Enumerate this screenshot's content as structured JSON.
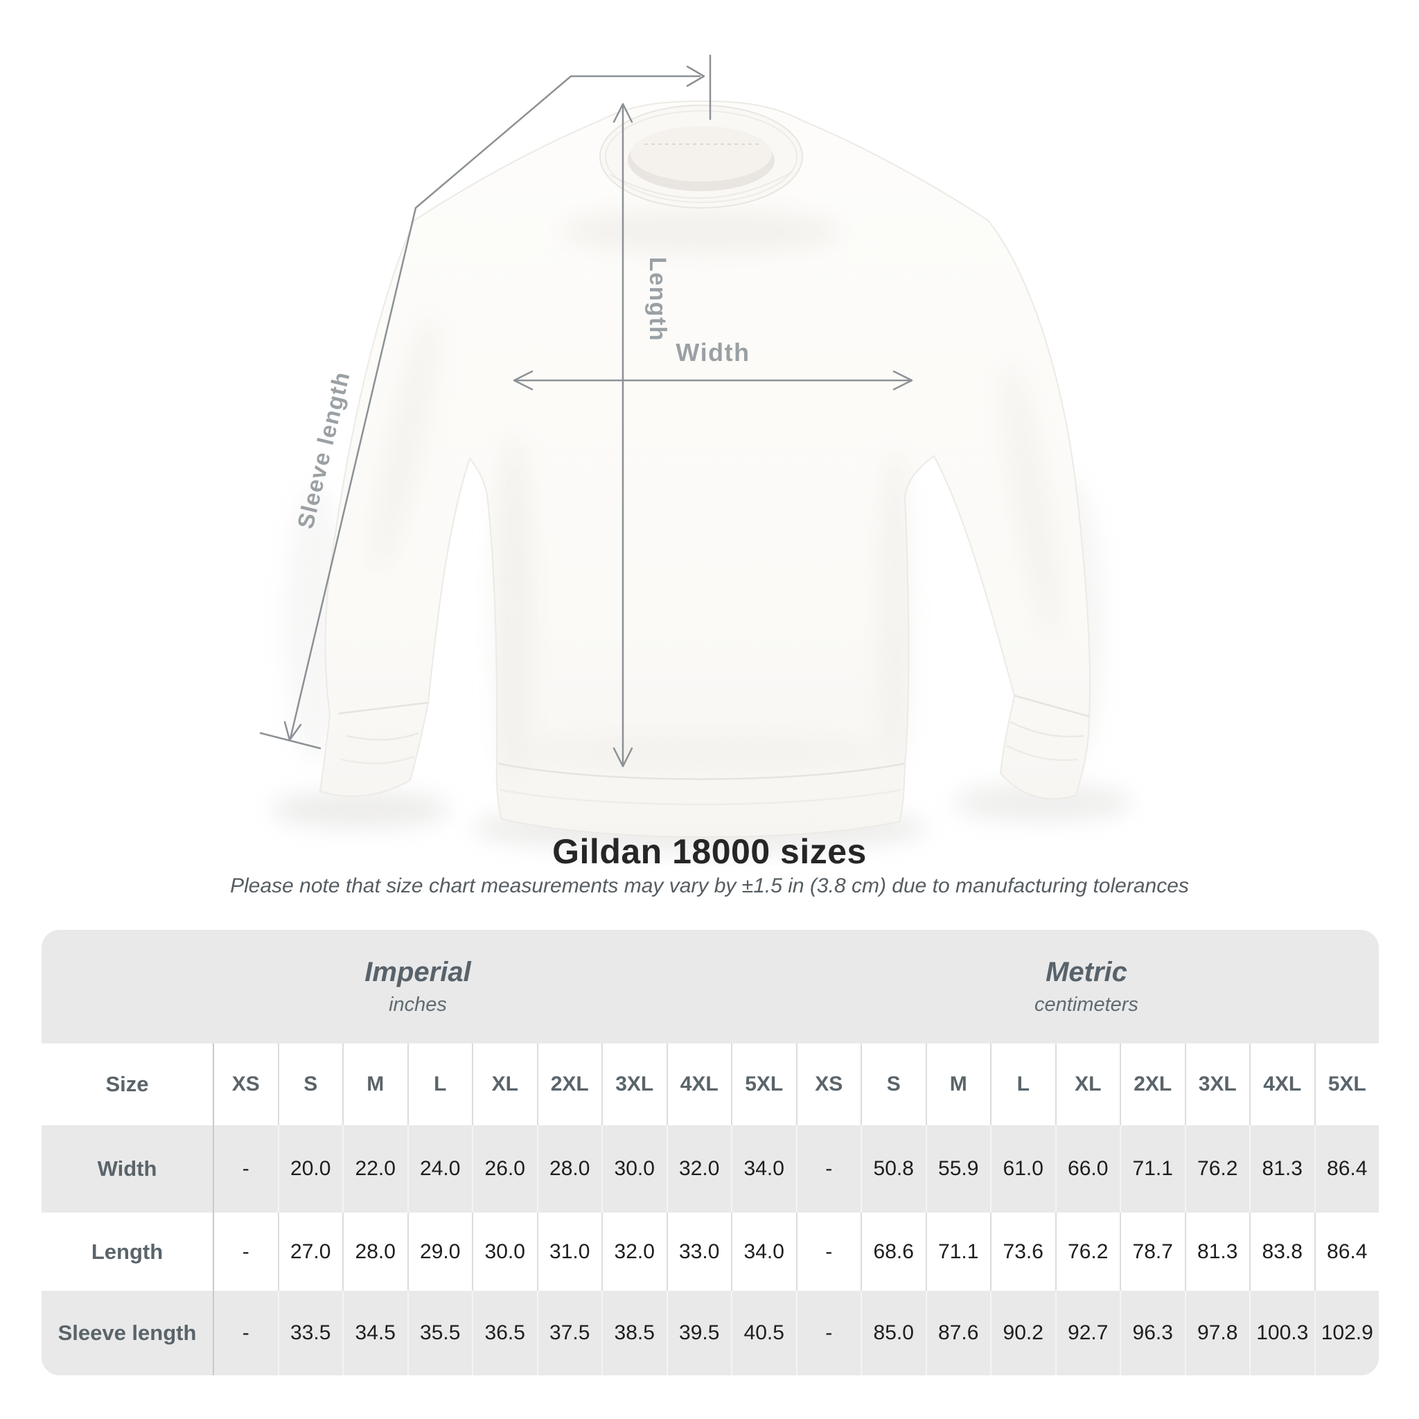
{
  "figure": {
    "length_label": "Length",
    "width_label": "Width",
    "sleeve_label": "Sleeve length"
  },
  "title": "Gildan 18000 sizes",
  "subtitle": "Please note that size chart measurements may vary by ±1.5 in (3.8 cm) due to manufacturing tolerances",
  "table": {
    "group_headers": [
      {
        "label": "Imperial",
        "sub": "inches"
      },
      {
        "label": "Metric",
        "sub": "centimeters"
      }
    ],
    "size_header": "Size",
    "columns": [
      "XS",
      "S",
      "M",
      "L",
      "XL",
      "2XL",
      "3XL",
      "4XL",
      "5XL",
      "XS",
      "S",
      "M",
      "L",
      "XL",
      "2XL",
      "3XL",
      "4XL",
      "5XL"
    ],
    "rows": [
      {
        "label": "Width",
        "values": [
          "-",
          "20.0",
          "22.0",
          "24.0",
          "26.0",
          "28.0",
          "30.0",
          "32.0",
          "34.0",
          "-",
          "50.8",
          "55.9",
          "61.0",
          "66.0",
          "71.1",
          "76.2",
          "81.3",
          "86.4"
        ]
      },
      {
        "label": "Length",
        "values": [
          "-",
          "27.0",
          "28.0",
          "29.0",
          "30.0",
          "31.0",
          "32.0",
          "33.0",
          "34.0",
          "-",
          "68.6",
          "71.1",
          "73.6",
          "76.2",
          "78.7",
          "81.3",
          "83.8",
          "86.4"
        ]
      },
      {
        "label": "Sleeve length",
        "values": [
          "-",
          "33.5",
          "34.5",
          "35.5",
          "36.5",
          "37.5",
          "38.5",
          "39.5",
          "40.5",
          "-",
          "85.0",
          "87.6",
          "90.2",
          "92.7",
          "96.3",
          "97.8",
          "100.3",
          "102.9"
        ]
      }
    ]
  },
  "chart_data": {
    "type": "table",
    "title": "Gildan 18000 sizes",
    "sizes": [
      "XS",
      "S",
      "M",
      "L",
      "XL",
      "2XL",
      "3XL",
      "4XL",
      "5XL"
    ],
    "width_inches": [
      null,
      20.0,
      22.0,
      24.0,
      26.0,
      28.0,
      30.0,
      32.0,
      34.0
    ],
    "length_inches": [
      null,
      27.0,
      28.0,
      29.0,
      30.0,
      31.0,
      32.0,
      33.0,
      34.0
    ],
    "sleeve_inches": [
      null,
      33.5,
      34.5,
      35.5,
      36.5,
      37.5,
      38.5,
      39.5,
      40.5
    ],
    "width_cm": [
      null,
      50.8,
      55.9,
      61.0,
      66.0,
      71.1,
      76.2,
      81.3,
      86.4
    ],
    "length_cm": [
      null,
      68.6,
      71.1,
      73.6,
      76.2,
      78.7,
      81.3,
      83.8,
      86.4
    ],
    "sleeve_cm": [
      null,
      85.0,
      87.6,
      90.2,
      92.7,
      96.3,
      97.8,
      100.3,
      102.9
    ]
  }
}
